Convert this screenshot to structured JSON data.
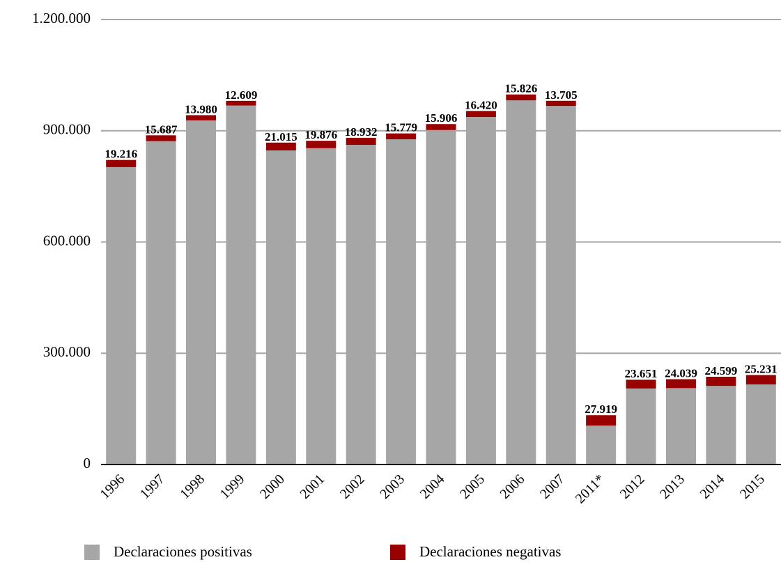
{
  "chart_data": {
    "type": "stacked-bar",
    "categories": [
      "1996",
      "1997",
      "1998",
      "1999",
      "2000",
      "2001",
      "2002",
      "2003",
      "2004",
      "2005",
      "2006",
      "2007",
      "2011*",
      "2012",
      "2013",
      "2014",
      "2015"
    ],
    "series": [
      {
        "name": "Declaraciones positivas",
        "color": "#a6a6a6",
        "values": [
          802000,
          872000,
          928000,
          968000,
          847000,
          853000,
          862000,
          877000,
          902000,
          937000,
          982000,
          967000,
          105000,
          205000,
          206000,
          212000,
          216000
        ]
      },
      {
        "name": "Declaraciones negativas",
        "color": "#990000",
        "values": [
          19216,
          15687,
          13980,
          12609,
          21015,
          19876,
          18932,
          15779,
          15906,
          16420,
          15826,
          13705,
          27919,
          23651,
          24039,
          24599,
          25231
        ],
        "value_labels": [
          "19.216",
          "15.687",
          "13.980",
          "12.609",
          "21.015",
          "19.876",
          "18.932",
          "15.779",
          "15.906",
          "16.420",
          "15.826",
          "13.705",
          "27.919",
          "23.651",
          "24.039",
          "24.599",
          "25.231"
        ]
      }
    ],
    "ylim": [
      0,
      1200000
    ],
    "yticks": [
      0,
      {
        "value": 300000,
        "label": "300.000"
      },
      {
        "value": 600000,
        "label": "600.000"
      },
      {
        "value": 900000,
        "label": "900.000"
      },
      {
        "value": 1200000,
        "label": "1.200.000"
      }
    ],
    "grid": true,
    "legend": "bottom"
  }
}
